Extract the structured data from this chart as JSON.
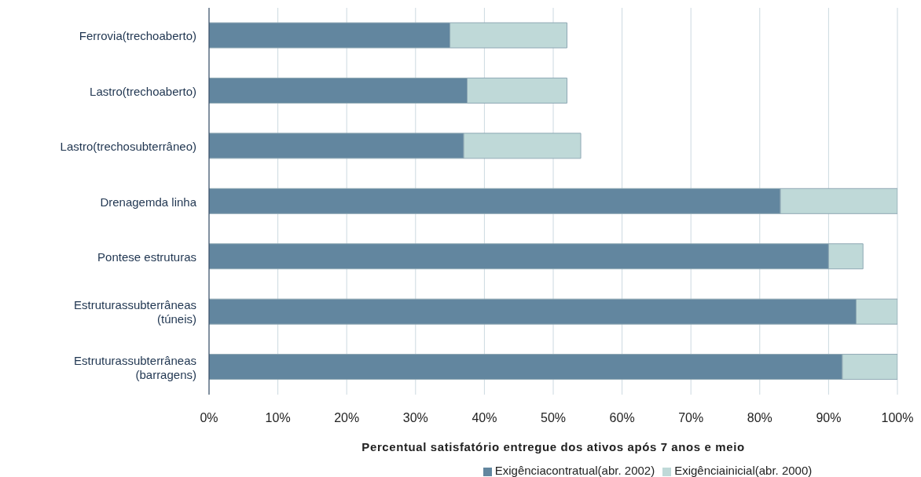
{
  "chart_data": {
    "type": "bar",
    "orientation": "horizontal",
    "stacked": true,
    "categories": [
      "Ferrovia(trechoaberto)",
      "Lastro(trechoaberto)",
      "Lastro(trechosubterrâneo)",
      "Drenagemda linha",
      "Pontese estruturas",
      "Estruturassubterrâneas\n(túneis)",
      "Estruturassubterrâneas\n(barragens)"
    ],
    "series": [
      {
        "name": "Exigênciacontratual(abr. 2002)",
        "color": "#62869f",
        "values": [
          35,
          37.5,
          37,
          83,
          90,
          94,
          92
        ]
      },
      {
        "name": "Exigênciainicial(abr. 2000)",
        "color": "#bfd9d8",
        "values": [
          17,
          14.5,
          17,
          17,
          5,
          6,
          8
        ]
      }
    ],
    "xlabel": "Percentual satisfatório entregue dos ativos após 7 anos e meio",
    "xlim": [
      0,
      100
    ],
    "xticks": [
      {
        "value": 0,
        "label": "0%"
      },
      {
        "value": 10,
        "label": "10%"
      },
      {
        "value": 20,
        "label": "20%"
      },
      {
        "value": 30,
        "label": "30%"
      },
      {
        "value": 40,
        "label": "40%"
      },
      {
        "value": 50,
        "label": "50%"
      },
      {
        "value": 60,
        "label": "60%"
      },
      {
        "value": 70,
        "label": "70%"
      },
      {
        "value": 80,
        "label": "80%"
      },
      {
        "value": 90,
        "label": "90%"
      },
      {
        "value": 100,
        "label": "100%"
      }
    ],
    "grid": "x",
    "legend": "bottom"
  }
}
